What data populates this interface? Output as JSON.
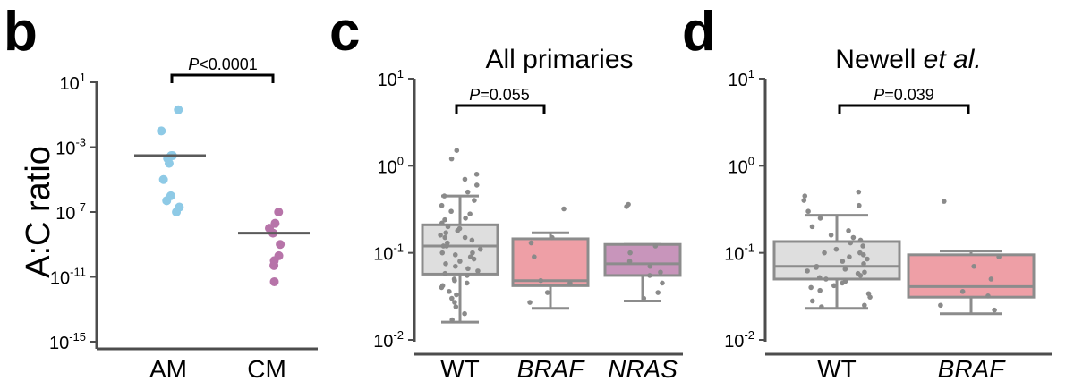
{
  "figure": {
    "panels": [
      {
        "letter": "b"
      },
      {
        "letter": "c",
        "title": "All primaries"
      },
      {
        "letter": "d",
        "title_main": "Newell ",
        "title_italic": "et al."
      }
    ]
  },
  "colors": {
    "am_blue": "#8ecae6",
    "cm_purple": "#b774a9",
    "wt_box": "#dedede",
    "braf_box": "#ee9fa6",
    "nras_box": "#c895bb",
    "box_edge": "#8c8c8c",
    "jitter_point": "#8a8a8a",
    "axis": "#4d4d4d"
  },
  "chart_data": [
    {
      "panel": "b",
      "type": "scatter",
      "ylabel": "A:C ratio",
      "yscale": "log",
      "ylim": [
        1e-15,
        10
      ],
      "yticks": [
        {
          "base": "10",
          "exp": "1"
        },
        {
          "base": "10",
          "exp": "-3"
        },
        {
          "base": "10",
          "exp": "-7"
        },
        {
          "base": "10",
          "exp": "-11"
        },
        {
          "base": "10",
          "exp": "-15"
        }
      ],
      "categories": [
        "AM",
        "CM"
      ],
      "groups": [
        {
          "name": "AM",
          "median": 0.0003,
          "values": [
            0.2,
            0.01,
            0.0003,
            0.0002,
            0.0001,
            0.0003,
            1e-05,
            5e-07,
            1e-06,
            2e-07,
            1e-07
          ]
        },
        {
          "name": "CM",
          "median": 5e-09,
          "values": [
            1e-07,
            2e-08,
            5e-09,
            1e-08,
            1e-09,
            2e-10,
            5e-11,
            5e-12,
            1e-10
          ]
        }
      ],
      "annotation": {
        "p_italic": "P",
        "p_rest": "<0.0001",
        "between": [
          "AM",
          "CM"
        ]
      }
    },
    {
      "panel": "c",
      "type": "box",
      "title": "All primaries",
      "yscale": "log",
      "ylim": [
        0.01,
        10
      ],
      "yticks": [
        {
          "base": "10",
          "exp": "1"
        },
        {
          "base": "10",
          "exp": "0"
        },
        {
          "base": "10",
          "exp": "-1"
        },
        {
          "base": "10",
          "exp": "-2"
        }
      ],
      "categories": [
        "WT",
        "BRAF",
        "NRAS"
      ],
      "category_italic": [
        false,
        true,
        true
      ],
      "boxes": [
        {
          "name": "WT",
          "whisker_low": 0.016,
          "q1": 0.057,
          "median": 0.12,
          "q3": 0.21,
          "whisker_high": 0.45,
          "points": [
            1.5,
            1.2,
            0.8,
            0.7,
            0.6,
            0.5,
            0.45,
            0.4,
            0.35,
            0.3,
            0.28,
            0.25,
            0.24,
            0.22,
            0.2,
            0.19,
            0.18,
            0.17,
            0.16,
            0.15,
            0.15,
            0.14,
            0.13,
            0.12,
            0.12,
            0.11,
            0.1,
            0.1,
            0.095,
            0.09,
            0.085,
            0.08,
            0.075,
            0.07,
            0.066,
            0.062,
            0.058,
            0.055,
            0.05,
            0.048,
            0.045,
            0.042,
            0.04,
            0.036,
            0.033,
            0.03,
            0.027,
            0.024,
            0.02,
            0.017
          ]
        },
        {
          "name": "BRAF",
          "whisker_low": 0.023,
          "q1": 0.042,
          "median": 0.048,
          "q3": 0.145,
          "whisker_high": 0.17,
          "points": [
            0.32,
            0.15,
            0.13,
            0.09,
            0.048,
            0.045,
            0.035,
            0.027
          ]
        },
        {
          "name": "NRAS",
          "whisker_low": 0.028,
          "q1": 0.055,
          "median": 0.075,
          "q3": 0.125,
          "whisker_high": 0.125,
          "points": [
            0.36,
            0.34,
            0.12,
            0.1,
            0.08,
            0.07,
            0.06,
            0.055,
            0.045,
            0.035,
            0.03
          ]
        }
      ],
      "annotation": {
        "p_italic": "P",
        "p_rest": "=0.055",
        "between": [
          "WT",
          "BRAF"
        ]
      }
    },
    {
      "panel": "d",
      "type": "box",
      "title": "Newell et al.",
      "yscale": "log",
      "ylim": [
        0.01,
        10
      ],
      "yticks": [
        {
          "base": "10",
          "exp": "1"
        },
        {
          "base": "10",
          "exp": "0"
        },
        {
          "base": "10",
          "exp": "-1"
        },
        {
          "base": "10",
          "exp": "-2"
        }
      ],
      "categories": [
        "WT",
        "BRAF"
      ],
      "category_italic": [
        false,
        true
      ],
      "boxes": [
        {
          "name": "WT",
          "whisker_low": 0.023,
          "q1": 0.05,
          "median": 0.07,
          "q3": 0.135,
          "whisker_high": 0.27,
          "points": [
            0.5,
            0.45,
            0.4,
            0.35,
            0.3,
            0.25,
            0.2,
            0.18,
            0.16,
            0.15,
            0.14,
            0.13,
            0.12,
            0.11,
            0.1,
            0.1,
            0.095,
            0.09,
            0.085,
            0.08,
            0.075,
            0.07,
            0.068,
            0.065,
            0.062,
            0.06,
            0.058,
            0.055,
            0.052,
            0.05,
            0.047,
            0.045,
            0.042,
            0.04,
            0.037,
            0.034,
            0.031,
            0.028,
            0.025,
            0.024
          ]
        },
        {
          "name": "BRAF",
          "whisker_low": 0.02,
          "q1": 0.031,
          "median": 0.041,
          "q3": 0.095,
          "whisker_high": 0.105,
          "points": [
            0.39,
            0.09,
            0.07,
            0.05,
            0.036,
            0.032,
            0.025,
            0.022
          ]
        }
      ],
      "annotation": {
        "p_italic": "P",
        "p_rest": "=0.039",
        "between": [
          "WT",
          "BRAF"
        ]
      }
    }
  ]
}
